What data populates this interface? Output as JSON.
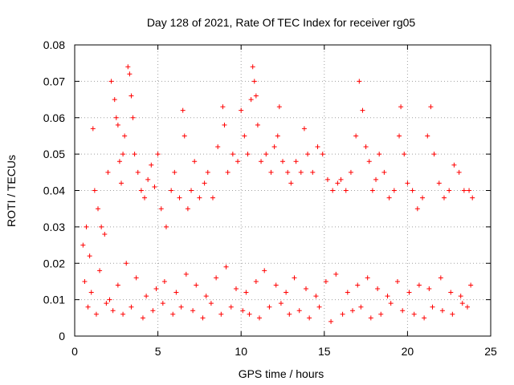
{
  "chart_data": {
    "type": "scatter",
    "title": "Day 128 of 2021, Rate Of TEC Index for receiver rg05",
    "xlabel": "GPS time / hours",
    "ylabel": "ROTI / TECUs",
    "xlim": [
      0,
      25
    ],
    "ylim": [
      0,
      0.08
    ],
    "xticks": [
      0,
      5,
      10,
      15,
      20,
      25
    ],
    "yticks": [
      0,
      0.01,
      0.02,
      0.03,
      0.04,
      0.05,
      0.06,
      0.07,
      0.08
    ],
    "xtick_labels": [
      "0",
      "5",
      "10",
      "15",
      "20",
      "25"
    ],
    "ytick_labels": [
      "0",
      "0.01",
      "0.02",
      "0.03",
      "0.04",
      "0.05",
      "0.06",
      "0.07",
      "0.08"
    ],
    "grid": true,
    "marker": "+",
    "color": "#ff0000",
    "series": [
      {
        "name": "ROTI",
        "x": [
          0.5,
          0.7,
          0.9,
          1.1,
          1.2,
          1.4,
          1.6,
          1.8,
          2.0,
          2.2,
          2.4,
          2.5,
          2.6,
          2.7,
          2.8,
          2.9,
          3.0,
          3.2,
          3.3,
          3.4,
          3.5,
          3.6,
          3.8,
          4.0,
          4.2,
          4.4,
          4.6,
          4.8,
          5.0,
          5.2,
          5.5,
          5.8,
          6.0,
          6.3,
          6.5,
          6.6,
          6.8,
          7.0,
          7.2,
          7.5,
          7.8,
          8.0,
          8.3,
          8.6,
          8.9,
          9.0,
          9.2,
          9.5,
          9.8,
          10.0,
          10.2,
          10.4,
          10.6,
          10.7,
          10.8,
          10.9,
          11.0,
          11.2,
          11.5,
          11.8,
          12.0,
          12.2,
          12.3,
          12.5,
          12.8,
          13.0,
          13.3,
          13.6,
          13.8,
          14.0,
          14.3,
          14.6,
          14.9,
          15.2,
          15.5,
          15.8,
          16.0,
          16.3,
          16.6,
          16.9,
          17.1,
          17.3,
          17.5,
          17.7,
          17.9,
          18.1,
          18.3,
          18.6,
          18.9,
          19.2,
          19.5,
          19.6,
          19.8,
          20.0,
          20.3,
          20.6,
          20.9,
          21.2,
          21.4,
          21.6,
          21.9,
          22.2,
          22.5,
          22.8,
          23.1,
          23.4,
          23.7,
          23.9,
          0.6,
          1.0,
          1.5,
          2.1,
          2.6,
          3.1,
          3.7,
          4.3,
          4.9,
          5.4,
          6.1,
          6.7,
          7.3,
          7.9,
          8.5,
          9.1,
          9.7,
          10.3,
          10.9,
          11.4,
          12.1,
          12.7,
          13.2,
          13.9,
          14.5,
          15.1,
          15.7,
          16.4,
          17.0,
          17.6,
          18.2,
          18.8,
          19.4,
          20.1,
          20.7,
          21.3,
          22.0,
          22.6,
          23.2,
          23.8,
          0.8,
          1.3,
          1.9,
          2.3,
          2.9,
          3.4,
          4.1,
          4.7,
          5.3,
          5.9,
          6.4,
          7.1,
          7.7,
          8.2,
          8.8,
          9.4,
          10.1,
          10.5,
          11.1,
          11.7,
          12.4,
          12.9,
          13.5,
          14.1,
          14.7,
          15.4,
          16.1,
          16.7,
          17.2,
          17.8,
          18.4,
          19.0,
          19.7,
          20.4,
          21.0,
          21.5,
          22.1,
          22.7,
          23.3,
          23.6
        ],
        "y": [
          0.025,
          0.03,
          0.022,
          0.057,
          0.04,
          0.035,
          0.03,
          0.028,
          0.045,
          0.07,
          0.065,
          0.06,
          0.058,
          0.048,
          0.042,
          0.05,
          0.055,
          0.074,
          0.072,
          0.066,
          0.06,
          0.05,
          0.045,
          0.04,
          0.038,
          0.043,
          0.047,
          0.041,
          0.05,
          0.035,
          0.03,
          0.04,
          0.045,
          0.038,
          0.062,
          0.055,
          0.035,
          0.04,
          0.048,
          0.038,
          0.042,
          0.045,
          0.038,
          0.052,
          0.063,
          0.058,
          0.045,
          0.05,
          0.048,
          0.062,
          0.055,
          0.05,
          0.065,
          0.074,
          0.07,
          0.066,
          0.058,
          0.048,
          0.05,
          0.045,
          0.052,
          0.055,
          0.063,
          0.048,
          0.045,
          0.042,
          0.048,
          0.045,
          0.057,
          0.05,
          0.045,
          0.052,
          0.05,
          0.043,
          0.04,
          0.042,
          0.043,
          0.04,
          0.045,
          0.055,
          0.07,
          0.062,
          0.052,
          0.048,
          0.04,
          0.043,
          0.05,
          0.045,
          0.038,
          0.04,
          0.055,
          0.063,
          0.05,
          0.042,
          0.04,
          0.035,
          0.038,
          0.055,
          0.063,
          0.05,
          0.042,
          0.038,
          0.04,
          0.047,
          0.045,
          0.04,
          0.04,
          0.038,
          0.015,
          0.012,
          0.018,
          0.01,
          0.014,
          0.02,
          0.016,
          0.011,
          0.013,
          0.015,
          0.012,
          0.017,
          0.014,
          0.011,
          0.016,
          0.019,
          0.013,
          0.012,
          0.015,
          0.018,
          0.014,
          0.012,
          0.016,
          0.013,
          0.011,
          0.015,
          0.017,
          0.012,
          0.014,
          0.016,
          0.013,
          0.011,
          0.015,
          0.012,
          0.014,
          0.013,
          0.016,
          0.012,
          0.011,
          0.014,
          0.008,
          0.006,
          0.009,
          0.007,
          0.006,
          0.008,
          0.005,
          0.007,
          0.009,
          0.006,
          0.008,
          0.007,
          0.005,
          0.009,
          0.006,
          0.008,
          0.007,
          0.006,
          0.005,
          0.008,
          0.009,
          0.006,
          0.007,
          0.005,
          0.008,
          0.004,
          0.006,
          0.007,
          0.008,
          0.005,
          0.006,
          0.009,
          0.007,
          0.006,
          0.005,
          0.008,
          0.007,
          0.006,
          0.009,
          0.008
        ]
      }
    ]
  }
}
